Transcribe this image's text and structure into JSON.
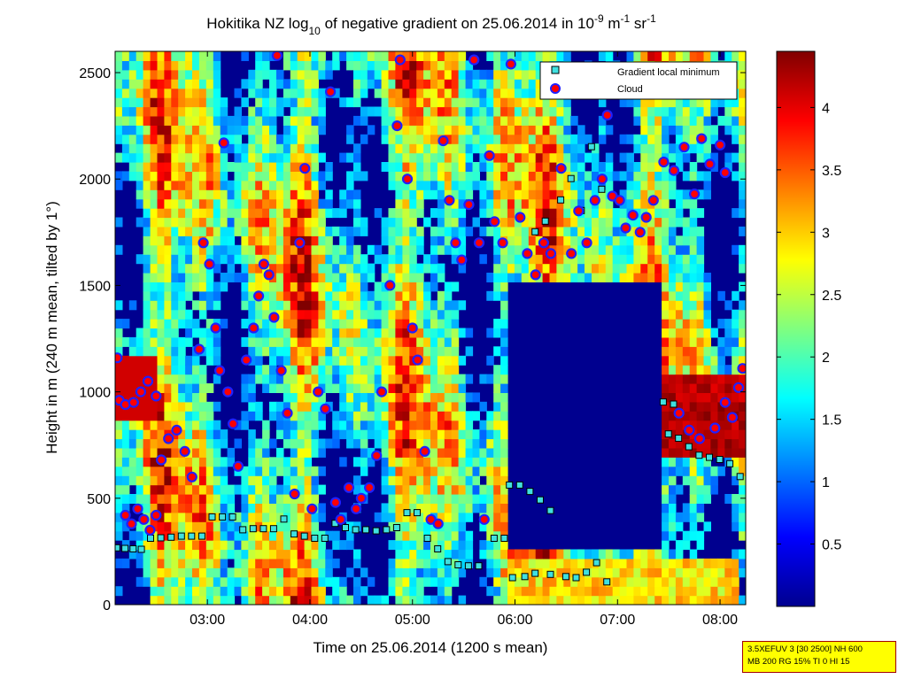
{
  "chart_data": {
    "type": "heatmap",
    "title_parts": {
      "prefix": "Hokitika NZ log",
      "sub": "10",
      "middle": " of negative gradient on 25.06.2014 in 10",
      "exp1": "-9",
      "unit_m": " m",
      "exp2": "-1",
      "unit_sr": " sr",
      "exp3": "-1"
    },
    "xlabel": "Time on 25.06.2014 (1200 s mean)",
    "ylabel": "Height in m (240 m mean, tilted by 1°)",
    "x_ticks": [
      "03:00",
      "04:00",
      "05:00",
      "06:00",
      "07:00",
      "08:00"
    ],
    "x_tick_hours": [
      3,
      4,
      5,
      6,
      7,
      8
    ],
    "xlim_hours": [
      2.1,
      8.25
    ],
    "y_ticks": [
      "0",
      "500",
      "1000",
      "1500",
      "2000",
      "2500"
    ],
    "y_tick_values": [
      0,
      500,
      1000,
      1500,
      2000,
      2500
    ],
    "ylim": [
      0,
      2600
    ],
    "colorbar": {
      "ticks": [
        "0.5",
        "1",
        "1.5",
        "2",
        "2.5",
        "3",
        "3.5",
        "4"
      ],
      "tick_values": [
        0.5,
        1,
        1.5,
        2,
        2.5,
        3,
        3.5,
        4
      ],
      "range": [
        0,
        4.45
      ],
      "colormap": "jet"
    },
    "legend": {
      "position": "top-right",
      "entries": [
        {
          "label": "Gradient local minimum",
          "marker": "square",
          "color": "#40e0e0"
        },
        {
          "label": "Cloud",
          "marker": "circle",
          "color": "#ff0000"
        }
      ]
    },
    "gradient_minimum_points": [
      {
        "t": 2.12,
        "h": 265
      },
      {
        "t": 2.2,
        "h": 262
      },
      {
        "t": 2.28,
        "h": 260
      },
      {
        "t": 2.36,
        "h": 258
      },
      {
        "t": 2.45,
        "h": 310
      },
      {
        "t": 2.55,
        "h": 312
      },
      {
        "t": 2.65,
        "h": 315
      },
      {
        "t": 2.75,
        "h": 320
      },
      {
        "t": 2.85,
        "h": 320
      },
      {
        "t": 2.95,
        "h": 320
      },
      {
        "t": 3.05,
        "h": 410
      },
      {
        "t": 3.15,
        "h": 410
      },
      {
        "t": 3.25,
        "h": 410
      },
      {
        "t": 3.35,
        "h": 350
      },
      {
        "t": 3.45,
        "h": 355
      },
      {
        "t": 3.55,
        "h": 355
      },
      {
        "t": 3.65,
        "h": 355
      },
      {
        "t": 3.75,
        "h": 400
      },
      {
        "t": 3.85,
        "h": 330
      },
      {
        "t": 3.95,
        "h": 320
      },
      {
        "t": 4.05,
        "h": 310
      },
      {
        "t": 4.15,
        "h": 310
      },
      {
        "t": 4.25,
        "h": 380
      },
      {
        "t": 4.35,
        "h": 360
      },
      {
        "t": 4.45,
        "h": 350
      },
      {
        "t": 4.55,
        "h": 350
      },
      {
        "t": 4.65,
        "h": 345
      },
      {
        "t": 4.75,
        "h": 350
      },
      {
        "t": 4.85,
        "h": 360
      },
      {
        "t": 4.95,
        "h": 430
      },
      {
        "t": 5.05,
        "h": 430
      },
      {
        "t": 5.15,
        "h": 310
      },
      {
        "t": 5.25,
        "h": 260
      },
      {
        "t": 5.35,
        "h": 200
      },
      {
        "t": 5.45,
        "h": 185
      },
      {
        "t": 5.55,
        "h": 180
      },
      {
        "t": 5.65,
        "h": 180
      },
      {
        "t": 5.8,
        "h": 310
      },
      {
        "t": 5.9,
        "h": 310
      },
      {
        "t": 5.95,
        "h": 560
      },
      {
        "t": 6.05,
        "h": 560
      },
      {
        "t": 6.15,
        "h": 530
      },
      {
        "t": 6.25,
        "h": 490
      },
      {
        "t": 6.35,
        "h": 440
      },
      {
        "t": 5.98,
        "h": 125
      },
      {
        "t": 6.1,
        "h": 130
      },
      {
        "t": 6.2,
        "h": 145
      },
      {
        "t": 6.35,
        "h": 140
      },
      {
        "t": 6.5,
        "h": 130
      },
      {
        "t": 6.6,
        "h": 125
      },
      {
        "t": 6.7,
        "h": 150
      },
      {
        "t": 6.8,
        "h": 195
      },
      {
        "t": 6.9,
        "h": 105
      },
      {
        "t": 7.45,
        "h": 950
      },
      {
        "t": 7.55,
        "h": 940
      },
      {
        "t": 7.5,
        "h": 800
      },
      {
        "t": 7.6,
        "h": 780
      },
      {
        "t": 7.7,
        "h": 740
      },
      {
        "t": 7.8,
        "h": 700
      },
      {
        "t": 7.9,
        "h": 690
      },
      {
        "t": 8.0,
        "h": 680
      },
      {
        "t": 8.1,
        "h": 660
      },
      {
        "t": 8.2,
        "h": 600
      },
      {
        "t": 6.2,
        "h": 1750
      },
      {
        "t": 6.3,
        "h": 1800
      },
      {
        "t": 6.45,
        "h": 1900
      },
      {
        "t": 6.55,
        "h": 2000
      },
      {
        "t": 6.65,
        "h": 1850
      },
      {
        "t": 6.75,
        "h": 2150
      },
      {
        "t": 6.85,
        "h": 1950
      }
    ],
    "cloud_points": [
      {
        "t": 2.12,
        "h": 1160
      },
      {
        "t": 2.14,
        "h": 960
      },
      {
        "t": 2.2,
        "h": 940
      },
      {
        "t": 2.28,
        "h": 950
      },
      {
        "t": 2.35,
        "h": 1000
      },
      {
        "t": 2.42,
        "h": 1050
      },
      {
        "t": 2.5,
        "h": 980
      },
      {
        "t": 2.2,
        "h": 420
      },
      {
        "t": 2.26,
        "h": 380
      },
      {
        "t": 2.32,
        "h": 450
      },
      {
        "t": 2.38,
        "h": 400
      },
      {
        "t": 2.44,
        "h": 350
      },
      {
        "t": 2.5,
        "h": 420
      },
      {
        "t": 2.55,
        "h": 680
      },
      {
        "t": 2.62,
        "h": 780
      },
      {
        "t": 2.7,
        "h": 820
      },
      {
        "t": 2.78,
        "h": 720
      },
      {
        "t": 2.85,
        "h": 600
      },
      {
        "t": 2.92,
        "h": 1200
      },
      {
        "t": 2.96,
        "h": 1700
      },
      {
        "t": 3.02,
        "h": 1600
      },
      {
        "t": 3.08,
        "h": 1300
      },
      {
        "t": 3.12,
        "h": 1100
      },
      {
        "t": 3.16,
        "h": 2170
      },
      {
        "t": 3.2,
        "h": 1000
      },
      {
        "t": 3.25,
        "h": 850
      },
      {
        "t": 3.3,
        "h": 650
      },
      {
        "t": 3.38,
        "h": 1150
      },
      {
        "t": 3.45,
        "h": 1300
      },
      {
        "t": 3.5,
        "h": 1450
      },
      {
        "t": 3.55,
        "h": 1600
      },
      {
        "t": 3.6,
        "h": 1550
      },
      {
        "t": 3.65,
        "h": 1350
      },
      {
        "t": 3.68,
        "h": 2580
      },
      {
        "t": 3.72,
        "h": 1100
      },
      {
        "t": 3.78,
        "h": 900
      },
      {
        "t": 3.85,
        "h": 520
      },
      {
        "t": 3.9,
        "h": 1700
      },
      {
        "t": 3.95,
        "h": 2050
      },
      {
        "t": 4.02,
        "h": 450
      },
      {
        "t": 4.08,
        "h": 1000
      },
      {
        "t": 4.15,
        "h": 920
      },
      {
        "t": 4.2,
        "h": 2410
      },
      {
        "t": 4.25,
        "h": 480
      },
      {
        "t": 4.3,
        "h": 400
      },
      {
        "t": 4.38,
        "h": 550
      },
      {
        "t": 4.45,
        "h": 450
      },
      {
        "t": 4.5,
        "h": 500
      },
      {
        "t": 4.58,
        "h": 550
      },
      {
        "t": 4.65,
        "h": 700
      },
      {
        "t": 4.7,
        "h": 1000
      },
      {
        "t": 4.78,
        "h": 1500
      },
      {
        "t": 4.85,
        "h": 2250
      },
      {
        "t": 4.88,
        "h": 2560
      },
      {
        "t": 4.95,
        "h": 2000
      },
      {
        "t": 5.0,
        "h": 1300
      },
      {
        "t": 5.05,
        "h": 1150
      },
      {
        "t": 5.12,
        "h": 720
      },
      {
        "t": 5.18,
        "h": 400
      },
      {
        "t": 5.25,
        "h": 380
      },
      {
        "t": 5.3,
        "h": 2180
      },
      {
        "t": 5.36,
        "h": 1900
      },
      {
        "t": 5.42,
        "h": 1700
      },
      {
        "t": 5.48,
        "h": 1620
      },
      {
        "t": 5.55,
        "h": 1880
      },
      {
        "t": 5.6,
        "h": 2560
      },
      {
        "t": 5.65,
        "h": 1700
      },
      {
        "t": 5.7,
        "h": 400
      },
      {
        "t": 5.75,
        "h": 2110
      },
      {
        "t": 5.8,
        "h": 1800
      },
      {
        "t": 5.88,
        "h": 1700
      },
      {
        "t": 5.96,
        "h": 2540
      },
      {
        "t": 6.05,
        "h": 1820
      },
      {
        "t": 6.12,
        "h": 1650
      },
      {
        "t": 6.2,
        "h": 1550
      },
      {
        "t": 6.28,
        "h": 1700
      },
      {
        "t": 6.35,
        "h": 1650
      },
      {
        "t": 6.45,
        "h": 2050
      },
      {
        "t": 6.55,
        "h": 1650
      },
      {
        "t": 6.62,
        "h": 1850
      },
      {
        "t": 6.7,
        "h": 1700
      },
      {
        "t": 6.78,
        "h": 1900
      },
      {
        "t": 6.85,
        "h": 2000
      },
      {
        "t": 6.9,
        "h": 2300
      },
      {
        "t": 6.95,
        "h": 1920
      },
      {
        "t": 7.02,
        "h": 1900
      },
      {
        "t": 7.08,
        "h": 1770
      },
      {
        "t": 7.15,
        "h": 1830
      },
      {
        "t": 7.22,
        "h": 1750
      },
      {
        "t": 7.28,
        "h": 1820
      },
      {
        "t": 7.35,
        "h": 1900
      },
      {
        "t": 7.45,
        "h": 2080
      },
      {
        "t": 7.55,
        "h": 2040
      },
      {
        "t": 7.65,
        "h": 2150
      },
      {
        "t": 7.75,
        "h": 1930
      },
      {
        "t": 7.82,
        "h": 2190
      },
      {
        "t": 7.9,
        "h": 2070
      },
      {
        "t": 8.0,
        "h": 2160
      },
      {
        "t": 8.05,
        "h": 2030
      },
      {
        "t": 7.6,
        "h": 900
      },
      {
        "t": 7.7,
        "h": 820
      },
      {
        "t": 7.8,
        "h": 780
      },
      {
        "t": 7.95,
        "h": 830
      },
      {
        "t": 8.05,
        "h": 950
      },
      {
        "t": 8.12,
        "h": 880
      },
      {
        "t": 8.18,
        "h": 1020
      },
      {
        "t": 8.22,
        "h": 1110
      }
    ]
  },
  "info_box": {
    "line1": "3.5XEFUV 3 [30 2500] NH 600",
    "line2": "MB 200 RG 15% TI 0 HI 15"
  }
}
